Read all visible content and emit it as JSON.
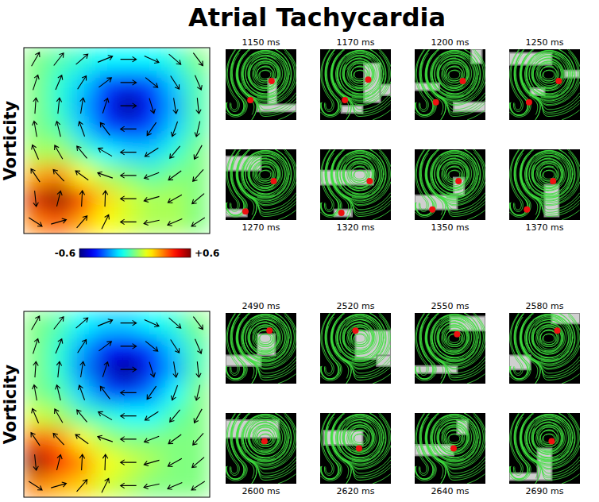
{
  "chart_data": [
    {
      "type": "heatmap",
      "title": "Atrial Tachycardia",
      "ylabel": "Vorticity",
      "tick_labels": false,
      "values": [
        [
          0,
          -0.05,
          -0.1,
          -0.15,
          -0.15,
          -0.15,
          -0.1,
          0
        ],
        [
          0,
          -0.1,
          -0.2,
          -0.35,
          -0.4,
          -0.35,
          -0.2,
          -0.05
        ],
        [
          0,
          -0.1,
          -0.25,
          -0.45,
          -0.6,
          -0.45,
          -0.25,
          -0.05
        ],
        [
          0,
          -0.05,
          -0.2,
          -0.35,
          -0.4,
          -0.35,
          -0.2,
          -0.05
        ],
        [
          0.05,
          0.05,
          -0.05,
          -0.15,
          -0.2,
          -0.2,
          -0.1,
          0
        ],
        [
          0.25,
          0.3,
          0.15,
          0.05,
          0,
          -0.05,
          0,
          0
        ],
        [
          0.5,
          0.6,
          0.4,
          0.2,
          0.1,
          0.05,
          0.05,
          0
        ],
        [
          0.3,
          0.35,
          0.25,
          0.15,
          0.1,
          0.05,
          0.05,
          0
        ]
      ],
      "vectors": [
        [
          -60,
          -52,
          -41,
          -22,
          0,
          24,
          41,
          53
        ],
        [
          -72,
          -67,
          -57,
          -37,
          0,
          39,
          57,
          67
        ],
        [
          -86,
          -84,
          -81,
          -72,
          0,
          73,
          81,
          84
        ],
        [
          -100,
          -104,
          -110,
          -127,
          180,
          125,
          110,
          103
        ],
        [
          -113,
          -120,
          -130,
          -150,
          180,
          148,
          130,
          119
        ],
        [
          -124,
          -133,
          -144,
          -161,
          180,
          159,
          144,
          132
        ],
        [
          84,
          -76,
          -87,
          -88,
          180,
          164,
          151,
          140
        ],
        [
          33,
          -16,
          -49,
          -64,
          180,
          168,
          157,
          147
        ]
      ],
      "colorbar_lim": [
        -0.6,
        0.6
      ],
      "colorbar_ticks": [
        -0.6,
        {
          "value": 0.6,
          "label": "+0.6"
        }
      ],
      "frames": [
        {
          "label": "1150 ms",
          "singularities": [
            [
              0.65,
              0.45
            ],
            [
              0.35,
              0.72
            ]
          ],
          "wavefront": [
            [
              0.6,
              0.42,
              0.72,
              0.85
            ],
            [
              0.45,
              0.78,
              1,
              0.88
            ]
          ]
        },
        {
          "label": "1170 ms",
          "singularities": [
            [
              0.68,
              0.43
            ],
            [
              0.35,
              0.72
            ]
          ],
          "wavefront": [
            [
              0.62,
              0.2,
              0.85,
              0.75
            ],
            [
              0.85,
              0.5,
              1,
              0.65
            ],
            [
              0.3,
              0.8,
              0.6,
              0.9
            ]
          ]
        },
        {
          "label": "1200 ms",
          "singularities": [
            [
              0.68,
              0.45
            ],
            [
              0.3,
              0.75
            ]
          ],
          "wavefront": [
            [
              0,
              0.48,
              0.35,
              0.58
            ],
            [
              0.55,
              0.75,
              1,
              0.88
            ],
            [
              0.8,
              0,
              0.95,
              0.2
            ]
          ]
        },
        {
          "label": "1250 ms",
          "singularities": [
            [
              0.7,
              0.45
            ],
            [
              0.28,
              0.75
            ]
          ],
          "wavefront": [
            [
              0,
              0.05,
              0.6,
              0.22
            ],
            [
              0.78,
              0.3,
              1,
              0.4
            ],
            [
              0.3,
              0.55,
              0.5,
              0.65
            ]
          ]
        },
        {
          "label": "1270 ms",
          "singularities": [
            [
              0.68,
              0.45
            ],
            [
              0.28,
              0.88
            ]
          ],
          "wavefront": [
            [
              0,
              0.1,
              0.5,
              0.3
            ],
            [
              0,
              0.85,
              0.3,
              0.95
            ]
          ]
        },
        {
          "label": "1320 ms",
          "singularities": [
            [
              0.7,
              0.45
            ],
            [
              0.3,
              0.9
            ]
          ],
          "wavefront": [
            [
              0,
              0.3,
              0.75,
              0.5
            ],
            [
              0.2,
              0.85,
              0.45,
              0.95
            ]
          ]
        },
        {
          "label": "1350 ms",
          "singularities": [
            [
              0.62,
              0.45
            ],
            [
              0.25,
              0.85
            ]
          ],
          "wavefront": [
            [
              0,
              0.65,
              0.6,
              0.85
            ],
            [
              0.55,
              0.4,
              0.7,
              0.65
            ]
          ]
        },
        {
          "label": "1370 ms",
          "singularities": [
            [
              0.62,
              0.45
            ],
            [
              0.25,
              0.85
            ]
          ],
          "wavefront": [
            [
              0.5,
              0.5,
              0.7,
              0.95
            ]
          ]
        }
      ]
    },
    {
      "type": "heatmap",
      "ylabel": "Vorticity",
      "tick_labels": false,
      "values": [
        [
          0,
          -0.05,
          -0.15,
          -0.2,
          -0.2,
          -0.15,
          -0.1,
          0
        ],
        [
          0,
          -0.1,
          -0.25,
          -0.4,
          -0.45,
          -0.35,
          -0.2,
          -0.05
        ],
        [
          0,
          -0.1,
          -0.3,
          -0.5,
          -0.6,
          -0.45,
          -0.25,
          -0.05
        ],
        [
          0,
          -0.05,
          -0.2,
          -0.35,
          -0.4,
          -0.3,
          -0.15,
          0
        ],
        [
          0.1,
          0.05,
          -0.05,
          -0.1,
          -0.15,
          -0.15,
          -0.05,
          0
        ],
        [
          0.35,
          0.3,
          0.15,
          0.05,
          0,
          0,
          0,
          0
        ],
        [
          0.6,
          0.45,
          0.3,
          0.15,
          0.1,
          0.05,
          0,
          0
        ],
        [
          0.3,
          0.25,
          0.2,
          0.1,
          0.05,
          0,
          0,
          0
        ]
      ],
      "vectors": [
        [
          -60,
          -52,
          -41,
          -22,
          0,
          24,
          41,
          53
        ],
        [
          -72,
          -67,
          -57,
          -37,
          0,
          39,
          57,
          67
        ],
        [
          -86,
          -84,
          -81,
          -72,
          0,
          73,
          81,
          84
        ],
        [
          -100,
          -104,
          -110,
          -127,
          180,
          125,
          110,
          103
        ],
        [
          -113,
          -120,
          -130,
          -150,
          180,
          148,
          130,
          119
        ],
        [
          -124,
          -133,
          -144,
          -161,
          180,
          159,
          144,
          132
        ],
        [
          84,
          -76,
          -87,
          -88,
          180,
          164,
          151,
          140
        ],
        [
          33,
          -16,
          -49,
          -64,
          180,
          168,
          157,
          147
        ]
      ],
      "colorbar_lim": [
        -0.6,
        0.6
      ],
      "colorbar_ticks": [
        -0.6,
        {
          "value": 0.6,
          "label": "+0.6"
        }
      ],
      "frames": [
        {
          "label": "2490 ms",
          "singularities": [
            [
              0.62,
              0.25
            ]
          ],
          "wavefront": [
            [
              0.45,
              0.3,
              0.7,
              0.6
            ],
            [
              0,
              0.6,
              0.5,
              0.75
            ]
          ]
        },
        {
          "label": "2520 ms",
          "singularities": [
            [
              0.5,
              0.25
            ]
          ],
          "wavefront": [
            [
              0.5,
              0.25,
              1,
              0.65
            ],
            [
              0.8,
              0.6,
              1,
              0.75
            ]
          ]
        },
        {
          "label": "2550 ms",
          "singularities": [
            [
              0.6,
              0.3
            ]
          ],
          "wavefront": [
            [
              0.5,
              0.05,
              1,
              0.25
            ],
            [
              0,
              0.75,
              0.6,
              0.85
            ]
          ]
        },
        {
          "label": "2580 ms",
          "singularities": [
            [
              0.68,
              0.25
            ]
          ],
          "wavefront": [
            [
              0.6,
              0,
              1,
              0.15
            ],
            [
              0,
              0.6,
              0.3,
              0.8
            ]
          ]
        },
        {
          "label": "2600 ms",
          "singularities": [
            [
              0.55,
              0.4
            ]
          ],
          "wavefront": [
            [
              0,
              0.1,
              0.75,
              0.35
            ]
          ]
        },
        {
          "label": "2620 ms",
          "singularities": [
            [
              0.55,
              0.5
            ]
          ],
          "wavefront": [
            [
              0.05,
              0.25,
              0.6,
              0.45
            ]
          ]
        },
        {
          "label": "2640 ms",
          "singularities": [
            [
              0.55,
              0.5
            ]
          ],
          "wavefront": [
            [
              0,
              0.45,
              0.55,
              0.6
            ],
            [
              0.6,
              0.1,
              0.75,
              0.3
            ]
          ]
        },
        {
          "label": "2690 ms",
          "singularities": [
            [
              0.6,
              0.4
            ]
          ],
          "wavefront": [
            [
              0.4,
              0.5,
              0.6,
              0.95
            ],
            [
              0,
              0.85,
              0.4,
              0.95
            ]
          ]
        }
      ]
    }
  ]
}
